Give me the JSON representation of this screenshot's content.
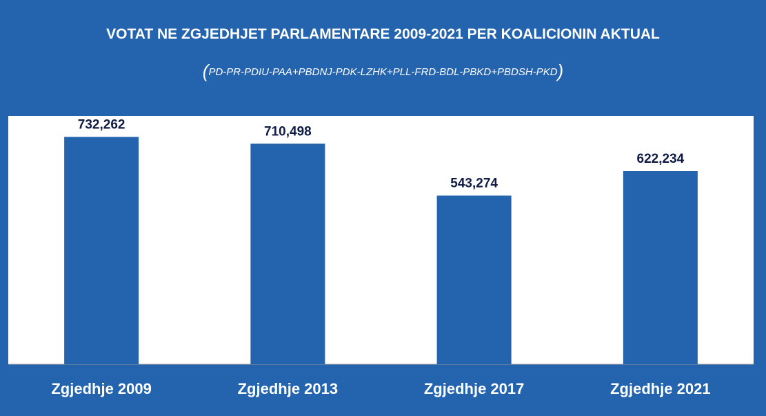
{
  "chart_data": {
    "type": "bar",
    "title": "VOTAT NE ZGJEDHJET PARLAMENTARE 2009-2021 PER KOALICIONIN AKTUAL",
    "subtitle": "PD-PR-PDIU-PAA+PBDNJ-PDK-LZHK+PLL-FRD-BDL-PBKD+PBDSH-PKD",
    "categories": [
      "Zgjedhje 2009",
      "Zgjedhje 2013",
      "Zgjedhje 2017",
      "Zgjedhje 2021"
    ],
    "values": [
      732262,
      710498,
      543274,
      622234
    ],
    "value_labels": [
      "732,262",
      "710,498",
      "543,274",
      "622,234"
    ],
    "ylim": [
      0,
      800000
    ],
    "grid": false,
    "legend": "none",
    "colors": {
      "background": "#2463AE",
      "plot_background": "#FFFFFF",
      "bar": "#2463AE",
      "value_label": "#0F1B45",
      "category_label": "#FFFFFF",
      "title": "#FFFFFF"
    }
  }
}
